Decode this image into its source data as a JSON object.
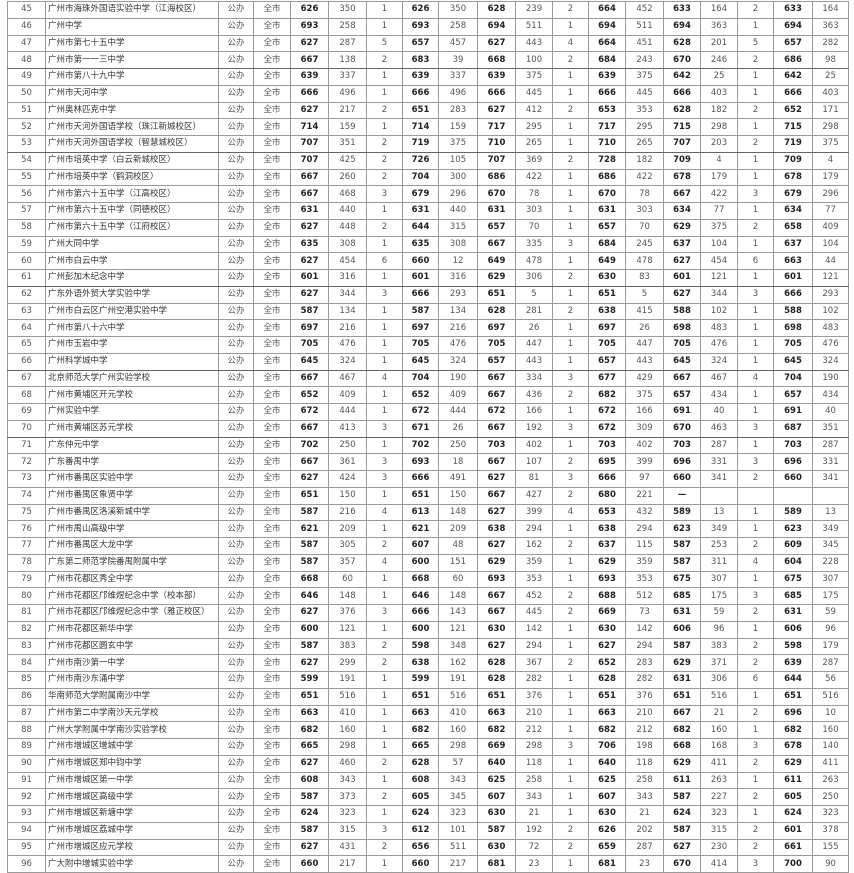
{
  "rows": [
    [
      "45",
      "广州市海珠外国语实验中学（江海校区）",
      "公办",
      "全市",
      "626",
      "350",
      "1",
      "626",
      "350",
      "628",
      "239",
      "2",
      "664",
      "452",
      "633",
      "164",
      "2",
      "633",
      "164"
    ],
    [
      "46",
      "广州中学",
      "公办",
      "全市",
      "693",
      "258",
      "1",
      "693",
      "258",
      "694",
      "511",
      "1",
      "694",
      "511",
      "694",
      "363",
      "1",
      "694",
      "363"
    ],
    [
      "47",
      "广州市第七十五中学",
      "公办",
      "全市",
      "627",
      "287",
      "5",
      "657",
      "457",
      "627",
      "443",
      "4",
      "664",
      "451",
      "628",
      "201",
      "5",
      "657",
      "282"
    ],
    [
      "48",
      "广州市第一一三中学",
      "公办",
      "全市",
      "667",
      "138",
      "2",
      "683",
      "39",
      "668",
      "100",
      "2",
      "684",
      "243",
      "670",
      "246",
      "2",
      "686",
      "98"
    ],
    [
      "49",
      "广州市第八十九中学",
      "公办",
      "全市",
      "639",
      "337",
      "1",
      "639",
      "337",
      "639",
      "375",
      "1",
      "639",
      "375",
      "642",
      "25",
      "1",
      "642",
      "25"
    ],
    [
      "50",
      "广州市天河中学",
      "公办",
      "全市",
      "666",
      "496",
      "1",
      "666",
      "496",
      "666",
      "445",
      "1",
      "666",
      "445",
      "666",
      "403",
      "1",
      "666",
      "403"
    ],
    [
      "51",
      "广州奥林匹克中学",
      "公办",
      "全市",
      "627",
      "217",
      "2",
      "651",
      "283",
      "627",
      "412",
      "2",
      "653",
      "353",
      "628",
      "182",
      "2",
      "652",
      "171"
    ],
    [
      "52",
      "广州市天河外国语学校（珠江新城校区）",
      "公办",
      "全市",
      "714",
      "159",
      "1",
      "714",
      "159",
      "717",
      "295",
      "1",
      "717",
      "295",
      "715",
      "298",
      "1",
      "715",
      "298"
    ],
    [
      "53",
      "广州市天河外国语学校（智慧城校区）",
      "公办",
      "全市",
      "707",
      "351",
      "2",
      "719",
      "375",
      "710",
      "265",
      "1",
      "710",
      "265",
      "707",
      "203",
      "2",
      "719",
      "375"
    ],
    [
      "54",
      "广州市培英中学（白云新城校区）",
      "公办",
      "全市",
      "707",
      "425",
      "2",
      "726",
      "105",
      "707",
      "369",
      "2",
      "728",
      "182",
      "709",
      "4",
      "1",
      "709",
      "4"
    ],
    [
      "55",
      "广州市培英中学（鹤洞校区）",
      "公办",
      "全市",
      "667",
      "260",
      "2",
      "704",
      "300",
      "686",
      "422",
      "1",
      "686",
      "422",
      "678",
      "179",
      "1",
      "678",
      "179"
    ],
    [
      "56",
      "广州市第六十五中学（江高校区）",
      "公办",
      "全市",
      "667",
      "468",
      "3",
      "679",
      "296",
      "670",
      "78",
      "1",
      "670",
      "78",
      "667",
      "422",
      "3",
      "679",
      "296"
    ],
    [
      "57",
      "广州市第六十五中学（同德校区）",
      "公办",
      "全市",
      "631",
      "440",
      "1",
      "631",
      "440",
      "631",
      "303",
      "1",
      "631",
      "303",
      "634",
      "77",
      "1",
      "634",
      "77"
    ],
    [
      "58",
      "广州市第六十五中学（江府校区）",
      "公办",
      "全市",
      "627",
      "448",
      "2",
      "644",
      "315",
      "657",
      "70",
      "1",
      "657",
      "70",
      "629",
      "375",
      "2",
      "658",
      "409"
    ],
    [
      "59",
      "广州大同中学",
      "公办",
      "全市",
      "635",
      "308",
      "1",
      "635",
      "308",
      "667",
      "335",
      "3",
      "684",
      "245",
      "637",
      "104",
      "1",
      "637",
      "104"
    ],
    [
      "60",
      "广州市白云中学",
      "公办",
      "全市",
      "627",
      "454",
      "6",
      "660",
      "12",
      "649",
      "478",
      "1",
      "649",
      "478",
      "627",
      "454",
      "6",
      "663",
      "44"
    ],
    [
      "61",
      "广州彭加木纪念中学",
      "公办",
      "全市",
      "601",
      "316",
      "1",
      "601",
      "316",
      "629",
      "306",
      "2",
      "630",
      "83",
      "601",
      "121",
      "1",
      "601",
      "121"
    ],
    [
      "62",
      "广东外语外贸大学实验中学",
      "公办",
      "全市",
      "627",
      "344",
      "3",
      "666",
      "293",
      "651",
      "5",
      "1",
      "651",
      "5",
      "627",
      "344",
      "3",
      "666",
      "293"
    ],
    [
      "63",
      "广州市白云区广州空港实验中学",
      "公办",
      "全市",
      "587",
      "134",
      "1",
      "587",
      "134",
      "628",
      "281",
      "2",
      "638",
      "415",
      "588",
      "102",
      "1",
      "588",
      "102"
    ],
    [
      "64",
      "广州市第八十六中学",
      "公办",
      "全市",
      "697",
      "216",
      "1",
      "697",
      "216",
      "697",
      "26",
      "1",
      "697",
      "26",
      "698",
      "483",
      "1",
      "698",
      "483"
    ],
    [
      "65",
      "广州市玉岩中学",
      "公办",
      "全市",
      "705",
      "476",
      "1",
      "705",
      "476",
      "705",
      "447",
      "1",
      "705",
      "447",
      "705",
      "476",
      "1",
      "705",
      "476"
    ],
    [
      "66",
      "广州科学城中学",
      "公办",
      "全市",
      "645",
      "324",
      "1",
      "645",
      "324",
      "657",
      "443",
      "1",
      "657",
      "443",
      "645",
      "324",
      "1",
      "645",
      "324"
    ],
    [
      "67",
      "北京师范大学广州实验学校",
      "公办",
      "全市",
      "667",
      "467",
      "4",
      "704",
      "190",
      "667",
      "334",
      "3",
      "677",
      "429",
      "667",
      "467",
      "4",
      "704",
      "190"
    ],
    [
      "68",
      "广州市黄埔区开元学校",
      "公办",
      "全市",
      "652",
      "409",
      "1",
      "652",
      "409",
      "667",
      "436",
      "2",
      "682",
      "375",
      "657",
      "434",
      "1",
      "657",
      "434"
    ],
    [
      "69",
      "广州实验中学",
      "公办",
      "全市",
      "672",
      "444",
      "1",
      "672",
      "444",
      "672",
      "166",
      "1",
      "672",
      "166",
      "691",
      "40",
      "1",
      "691",
      "40"
    ],
    [
      "70",
      "广州市黄埔区苏元学校",
      "公办",
      "全市",
      "667",
      "413",
      "3",
      "671",
      "26",
      "667",
      "192",
      "3",
      "672",
      "309",
      "670",
      "463",
      "3",
      "687",
      "351"
    ],
    [
      "71",
      "广东仲元中学",
      "公办",
      "全市",
      "702",
      "250",
      "1",
      "702",
      "250",
      "703",
      "402",
      "1",
      "703",
      "402",
      "703",
      "287",
      "1",
      "703",
      "287"
    ],
    [
      "72",
      "广东番禺中学",
      "公办",
      "全市",
      "667",
      "361",
      "3",
      "693",
      "18",
      "667",
      "107",
      "2",
      "695",
      "399",
      "696",
      "331",
      "3",
      "696",
      "331"
    ],
    [
      "73",
      "广州市番禺区实验中学",
      "公办",
      "全市",
      "627",
      "424",
      "3",
      "666",
      "491",
      "627",
      "81",
      "3",
      "666",
      "97",
      "660",
      "341",
      "2",
      "660",
      "341"
    ],
    [
      "74",
      "广州市番禺区象贤中学",
      "公办",
      "全市",
      "651",
      "150",
      "1",
      "651",
      "150",
      "667",
      "427",
      "2",
      "680",
      "221",
      "—",
      "",
      "",
      "",
      ""
    ],
    [
      "75",
      "广州市番禺区洛溪新城中学",
      "公办",
      "全市",
      "587",
      "216",
      "4",
      "613",
      "148",
      "627",
      "399",
      "4",
      "653",
      "432",
      "589",
      "13",
      "1",
      "589",
      "13"
    ],
    [
      "76",
      "广州市禺山高级中学",
      "公办",
      "全市",
      "621",
      "209",
      "1",
      "621",
      "209",
      "638",
      "294",
      "1",
      "638",
      "294",
      "623",
      "349",
      "1",
      "623",
      "349"
    ],
    [
      "77",
      "广州市番禺区大龙中学",
      "公办",
      "全市",
      "587",
      "305",
      "2",
      "607",
      "48",
      "627",
      "162",
      "2",
      "637",
      "115",
      "587",
      "253",
      "2",
      "609",
      "345"
    ],
    [
      "78",
      "广东第二师范学院番禺附属中学",
      "公办",
      "全市",
      "587",
      "357",
      "4",
      "600",
      "151",
      "629",
      "359",
      "1",
      "629",
      "359",
      "587",
      "311",
      "4",
      "604",
      "228"
    ],
    [
      "79",
      "广州市花都区秀全中学",
      "公办",
      "全市",
      "668",
      "60",
      "1",
      "668",
      "60",
      "693",
      "353",
      "1",
      "693",
      "353",
      "675",
      "307",
      "1",
      "675",
      "307"
    ],
    [
      "80",
      "广州市花都区邝维煜纪念中学（校本部）",
      "公办",
      "全市",
      "646",
      "148",
      "1",
      "646",
      "148",
      "667",
      "452",
      "2",
      "688",
      "512",
      "685",
      "175",
      "3",
      "685",
      "175"
    ],
    [
      "81",
      "广州市花都区邝维煜纪念中学（雅正校区）",
      "公办",
      "全市",
      "627",
      "376",
      "3",
      "666",
      "143",
      "667",
      "445",
      "2",
      "669",
      "73",
      "631",
      "59",
      "2",
      "631",
      "59"
    ],
    [
      "82",
      "广州市花都区新华中学",
      "公办",
      "全市",
      "600",
      "121",
      "1",
      "600",
      "121",
      "630",
      "142",
      "1",
      "630",
      "142",
      "606",
      "96",
      "1",
      "606",
      "96"
    ],
    [
      "83",
      "广州市花都区圆玄中学",
      "公办",
      "全市",
      "587",
      "383",
      "2",
      "598",
      "348",
      "627",
      "294",
      "1",
      "627",
      "294",
      "587",
      "383",
      "2",
      "598",
      "179"
    ],
    [
      "84",
      "广州市南沙第一中学",
      "公办",
      "全市",
      "627",
      "299",
      "2",
      "638",
      "162",
      "628",
      "367",
      "2",
      "652",
      "283",
      "629",
      "371",
      "2",
      "639",
      "287"
    ],
    [
      "85",
      "广州市南沙东涌中学",
      "公办",
      "全市",
      "599",
      "191",
      "1",
      "599",
      "191",
      "628",
      "282",
      "1",
      "628",
      "282",
      "631",
      "306",
      "6",
      "644",
      "56"
    ],
    [
      "86",
      "华南师范大学附属南沙中学",
      "公办",
      "全市",
      "651",
      "516",
      "1",
      "651",
      "516",
      "651",
      "376",
      "1",
      "651",
      "376",
      "651",
      "516",
      "1",
      "651",
      "516"
    ],
    [
      "87",
      "广州市第二中学南沙天元学校",
      "公办",
      "全市",
      "663",
      "410",
      "1",
      "663",
      "410",
      "663",
      "210",
      "1",
      "663",
      "210",
      "667",
      "21",
      "2",
      "696",
      "10"
    ],
    [
      "88",
      "广州大学附属中学南沙实验学校",
      "公办",
      "全市",
      "682",
      "160",
      "1",
      "682",
      "160",
      "682",
      "212",
      "1",
      "682",
      "212",
      "682",
      "160",
      "1",
      "682",
      "160"
    ],
    [
      "89",
      "广州市增城区增城中学",
      "公办",
      "全市",
      "665",
      "298",
      "1",
      "665",
      "298",
      "669",
      "298",
      "3",
      "706",
      "198",
      "668",
      "168",
      "3",
      "678",
      "140"
    ],
    [
      "90",
      "广州市增城区郑中钧中学",
      "公办",
      "全市",
      "627",
      "460",
      "2",
      "628",
      "57",
      "640",
      "118",
      "1",
      "640",
      "118",
      "629",
      "411",
      "2",
      "629",
      "411"
    ],
    [
      "91",
      "广州市增城区第一中学",
      "公办",
      "全市",
      "608",
      "343",
      "1",
      "608",
      "343",
      "625",
      "258",
      "1",
      "625",
      "258",
      "611",
      "263",
      "1",
      "611",
      "263"
    ],
    [
      "92",
      "广州市增城区高级中学",
      "公办",
      "全市",
      "587",
      "373",
      "2",
      "605",
      "345",
      "607",
      "343",
      "1",
      "607",
      "343",
      "587",
      "227",
      "2",
      "605",
      "250"
    ],
    [
      "93",
      "广州市增城区新塘中学",
      "公办",
      "全市",
      "624",
      "323",
      "1",
      "624",
      "323",
      "630",
      "21",
      "1",
      "630",
      "21",
      "624",
      "323",
      "1",
      "624",
      "323"
    ],
    [
      "94",
      "广州市增城区荔城中学",
      "公办",
      "全市",
      "587",
      "315",
      "3",
      "612",
      "101",
      "587",
      "192",
      "2",
      "626",
      "202",
      "587",
      "315",
      "2",
      "601",
      "378"
    ],
    [
      "95",
      "广州市增城区应元学校",
      "公办",
      "全市",
      "627",
      "431",
      "2",
      "656",
      "511",
      "630",
      "72",
      "2",
      "659",
      "287",
      "627",
      "230",
      "2",
      "661",
      "155"
    ],
    [
      "96",
      "广大附中增城实验中学",
      "公办",
      "全市",
      "660",
      "217",
      "1",
      "660",
      "217",
      "681",
      "23",
      "1",
      "681",
      "23",
      "670",
      "414",
      "3",
      "700",
      "90"
    ]
  ]
}
